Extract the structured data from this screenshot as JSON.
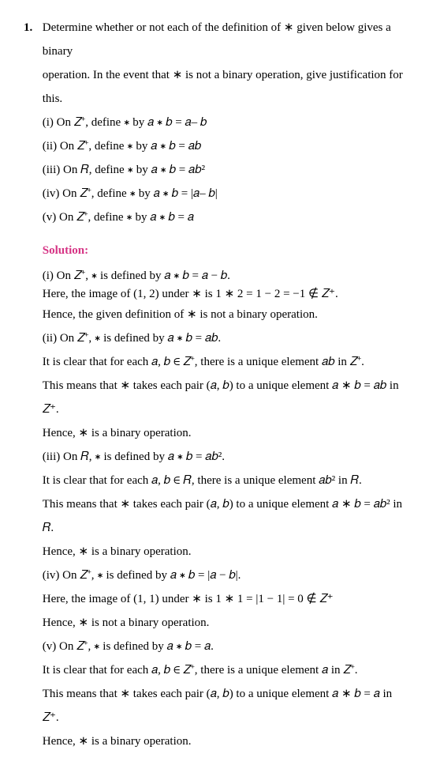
{
  "question": {
    "number": "1.",
    "prompt_line1": "Determine whether or not each of the definition of ∗ given below gives a binary",
    "prompt_line2": "operation. In the event that ∗ is not a binary operation, give justification for this.",
    "items": {
      "i": "(i) On 𝑍⁺, define ∗ by 𝑎 ∗ 𝑏 = 𝑎– 𝑏",
      "ii": "(ii) On 𝑍⁺, define ∗ by 𝑎 ∗ 𝑏 = 𝑎𝑏",
      "iii": "(iii) On 𝑅, define ∗ by 𝑎 ∗ 𝑏 = 𝑎𝑏²",
      "iv": "(iv) On 𝑍⁺, define ∗ by 𝑎 ∗ 𝑏 = |𝑎– 𝑏|",
      "v": "(v) On 𝑍⁺, define ∗ by 𝑎 ∗ 𝑏 = 𝑎"
    }
  },
  "solution": {
    "heading": "Solution:",
    "parts": {
      "i": {
        "l1": " (i) On 𝑍⁺, ∗ is defined by 𝑎 ∗ 𝑏 = 𝑎 − 𝑏.",
        "l2": "Here, the image of (1, 2) under ∗ is 1 ∗ 2 = 1 − 2 = −1 ∉ 𝑍⁺.",
        "l3": "Hence, the given definition of ∗ is not a binary operation."
      },
      "ii": {
        "l1": "(ii) On 𝑍⁺, ∗ is defined by 𝑎 ∗ 𝑏 = 𝑎𝑏.",
        "l2": "It is clear that for each 𝑎, 𝑏 ∈ 𝑍⁺, there is a unique element 𝑎𝑏 in 𝑍⁺.",
        "l3": "This means that ∗ takes each pair (𝑎, 𝑏) to a unique element 𝑎 ∗ 𝑏 = 𝑎𝑏 in 𝑍⁺.",
        "l4": "Hence, ∗ is a binary operation."
      },
      "iii": {
        "l1": "(iii) On 𝑅, ∗ is defined by 𝑎 ∗ 𝑏 = 𝑎𝑏².",
        "l2": "It is clear that for each 𝑎, 𝑏 ∈ 𝑅, there is a unique element 𝑎𝑏² in 𝑅.",
        "l3": "This means that ∗ takes each pair (𝑎, 𝑏) to a unique element 𝑎 ∗ 𝑏 = 𝑎𝑏² in 𝑅.",
        "l4": "Hence, ∗ is a binary operation."
      },
      "iv": {
        "l1": "(iv) On 𝑍⁺, ∗ is defined by 𝑎 ∗ 𝑏 = |𝑎 − 𝑏|.",
        "l2": "Here, the image of (1, 1) under ∗ is 1 ∗ 1 = |1 − 1| = 0 ∉ 𝑍⁺",
        "l3": "Hence, ∗ is not a binary operation."
      },
      "v": {
        "l1": "(v) On 𝑍⁺, ∗ is defined by 𝑎 ∗ 𝑏 = 𝑎.",
        "l2": "It is clear that for each 𝑎, 𝑏 ∈ 𝑍⁺, there is a unique element 𝑎 in  𝑍⁺.",
        "l3": "This means that ∗ takes each pair (𝑎, 𝑏) to a unique element 𝑎 ∗ 𝑏 = 𝑎 in 𝑍⁺.",
        "l4": "Hence, ∗ is a binary operation."
      }
    }
  },
  "style": {
    "text_color": "#000000",
    "solution_color": "#d63384",
    "background_color": "#ffffff",
    "font_family": "Times New Roman",
    "font_size_pt": 15,
    "line_height": 2.0
  }
}
